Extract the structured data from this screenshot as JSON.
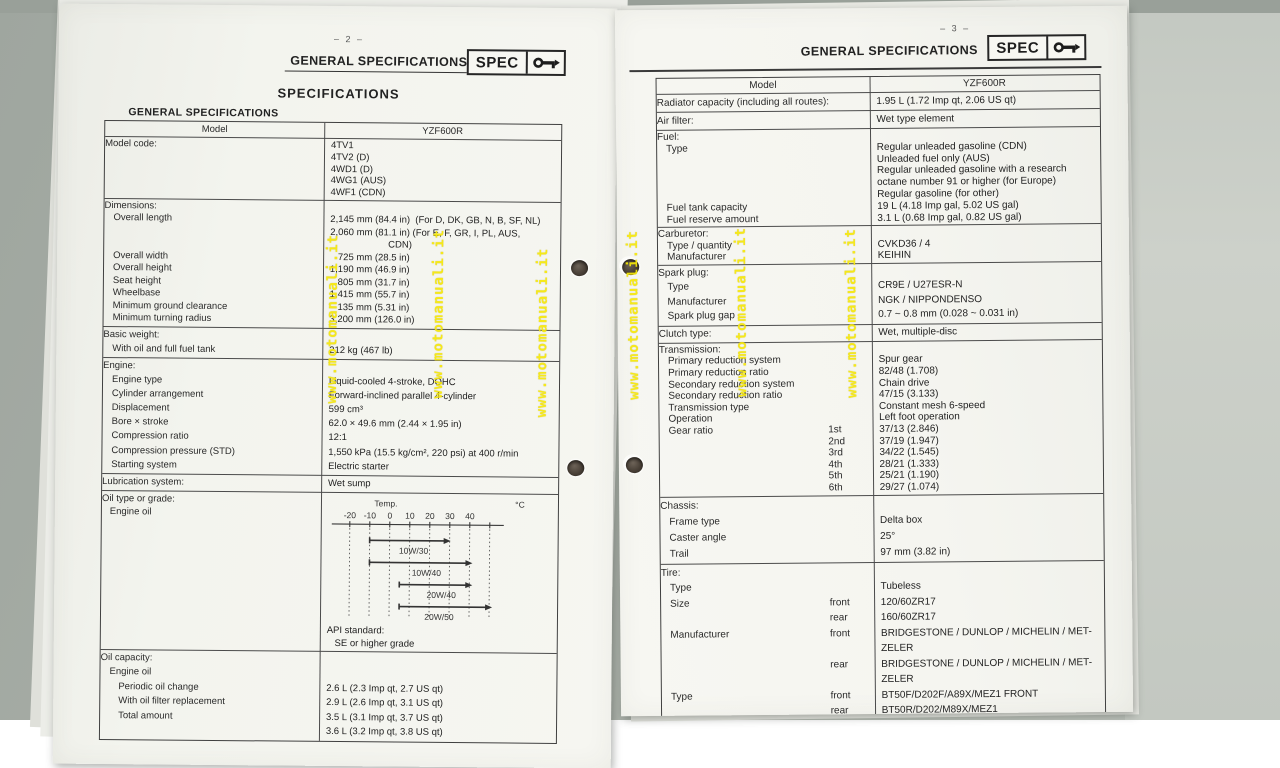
{
  "photo": {
    "watermark_text": "www.motomanuali.it",
    "watermark_color": "#f6e80a",
    "desk_color": "#aab0a9",
    "paper_color": "#f5f5f0"
  },
  "pages": {
    "left": {
      "page_number": "– 2 –",
      "header_title": "GENERAL SPECIFICATIONS",
      "spec_label": "SPEC",
      "title": "SPECIFICATIONS",
      "section_title": "GENERAL SPECIFICATIONS"
    },
    "right": {
      "page_number": "– 3 –",
      "header_title": "GENERAL SPECIFICATIONS",
      "spec_label": "SPEC"
    }
  },
  "oil_chart": {
    "temp_label": "Temp.",
    "unit_label": "°C",
    "ticks": [
      "-20",
      "-10",
      "0",
      "10",
      "20",
      "30",
      "40"
    ],
    "bars": [
      "10W/30",
      "10W/40",
      "20W/40",
      "20W/50"
    ],
    "api_lines": [
      "API standard:",
      "   SE or higher grade"
    ]
  },
  "chart_data": {
    "type": "bar",
    "title": "Engine oil viscosity vs temperature",
    "xlabel": "Temp. °C",
    "x_ticks": [
      -20,
      -10,
      0,
      10,
      20,
      30,
      40
    ],
    "categories": [
      "10W/30",
      "10W/40",
      "20W/40",
      "20W/50"
    ],
    "ranges_celsius": [
      [
        -10,
        30
      ],
      [
        -10,
        40
      ],
      [
        5,
        40
      ],
      [
        5,
        50
      ]
    ],
    "note": "horizontal temperature-range arrows; API standard: SE or higher grade"
  },
  "tables": {
    "left": {
      "header": [
        "Model",
        "YZF600R"
      ],
      "sections": [
        {
          "lh": 11.8,
          "rows": [
            {
              "label": "Model code:",
              "value_lines": [
                "4TV1",
                "4TV2 (D)",
                "4WD1 (D)",
                "4WG1 (AUS)",
                "4WF1 (CDN)"
              ]
            }
          ]
        },
        {
          "lh": 12.5,
          "rows": [
            {
              "label": "Dimensions:"
            },
            {
              "label": "Overall length",
              "indent": 1,
              "value_lines": [
                "2,145 mm (84.4 in)  (For D, DK, GB, N, B, SF, NL)",
                "2,060 mm (81.1 in) (For E, F, GR, I, PL, AUS,",
                "                      CDN)"
              ]
            },
            {
              "label": "Overall width",
              "indent": 1,
              "value_lines": [
                "   725 mm (28.5 in)"
              ]
            },
            {
              "label": "Overall height",
              "indent": 1,
              "value_lines": [
                "1,190 mm (46.9 in)"
              ]
            },
            {
              "label": "Seat height",
              "indent": 1,
              "value_lines": [
                "   805 mm (31.7 in)"
              ]
            },
            {
              "label": "Wheelbase",
              "indent": 1,
              "value_lines": [
                "1,415 mm (55.7 in)"
              ]
            },
            {
              "label": "Minimum ground clearance",
              "indent": 1,
              "value_lines": [
                "   135 mm (5.31 in)"
              ]
            },
            {
              "label": "Minimum turning radius",
              "indent": 1,
              "value_lines": [
                "3,200 mm (126.0 in)"
              ]
            }
          ]
        },
        {
          "lh": 14,
          "rows": [
            {
              "label": "Basic weight:"
            },
            {
              "label": "With oil and full fuel tank",
              "indent": 1,
              "value_lines": [
                "212 kg (467 lb)"
              ]
            }
          ]
        },
        {
          "lh": 14.1,
          "rows": [
            {
              "label": "Engine:"
            },
            {
              "label": "Engine type",
              "indent": 1,
              "value_lines": [
                "Liquid-cooled 4-stroke, DOHC"
              ]
            },
            {
              "label": "Cylinder arrangement",
              "indent": 1,
              "value_lines": [
                "Forward-inclined parallel 4-cylinder"
              ]
            },
            {
              "label": "Displacement",
              "indent": 1,
              "value_lines": [
                "599 cm³"
              ]
            },
            {
              "label": "Bore × stroke",
              "indent": 1,
              "value_lines": [
                "62.0 × 49.6 mm (2.44 × 1.95 in)"
              ]
            },
            {
              "label": "Compression ratio",
              "indent": 1,
              "value_lines": [
                "12:1"
              ]
            },
            {
              "label": "Compression pressure (STD)",
              "indent": 1,
              "value_lines": [
                "1,550 kPa (15.5 kg/cm², 220 psi) at 400 r/min"
              ]
            },
            {
              "label": "Starting system",
              "indent": 1,
              "value_lines": [
                "Electric starter"
              ]
            }
          ]
        },
        {
          "lh": 14,
          "rows": [
            {
              "label": "Lubrication system:",
              "value_lines": [
                "Wet sump"
              ]
            }
          ]
        },
        {
          "lh": 13,
          "rows": [
            {
              "label_lines": [
                "Oil type or grade:",
                "   Engine oil"
              ],
              "chart": true,
              "value_lines": [
                "API standard:",
                "   SE or higher grade"
              ]
            }
          ]
        },
        {
          "lh": 14.5,
          "rows": [
            {
              "label": "Oil capacity:"
            },
            {
              "label": "Engine oil",
              "indent": 1
            },
            {
              "label": "Periodic oil change",
              "indent": 2,
              "value_lines": [
                "2.6 L (2.3 Imp qt, 2.7 US qt)"
              ]
            },
            {
              "label": "With oil filter replacement",
              "indent": 2,
              "value_lines": [
                "2.9 L (2.6 Imp qt, 3.1 US qt)"
              ]
            },
            {
              "label": "Total amount",
              "indent": 2,
              "value_lines": [
                "3.5 L (3.1 Imp qt, 3.7 US qt)"
              ]
            },
            {
              "label": "",
              "value_lines": [
                "3.6 L (3.2 Imp qt, 3.8 US qt)"
              ]
            }
          ]
        }
      ]
    },
    "right": {
      "header": [
        "Model",
        "YZF600R"
      ],
      "sections": [
        {
          "lh": 15,
          "rows": [
            {
              "label": "Radiator capacity (including all routes):",
              "value_lines": [
                "1.95 L (1.72 Imp qt, 2.06 US qt)"
              ]
            }
          ]
        },
        {
          "lh": 15,
          "rows": [
            {
              "label": "Air filter:",
              "value_lines": [
                "Wet type element"
              ]
            }
          ]
        },
        {
          "lh": 11.8,
          "rows": [
            {
              "label": "Fuel:"
            },
            {
              "label": "Type",
              "indent": 1,
              "value_lines": [
                "Regular unleaded gasoline (CDN)",
                "Unleaded fuel only (AUS)",
                "Regular unleaded gasoline with a research",
                "octane number 91 or higher (for Europe)",
                "Regular gasoline (for other)"
              ]
            },
            {
              "label": "Fuel tank capacity",
              "indent": 1,
              "value_lines": [
                "19 L (4.18 Imp gal, 5.02 US gal)"
              ]
            },
            {
              "label": "Fuel reserve amount",
              "indent": 1,
              "value_lines": [
                "3.1 L (0.68 Imp gal, 0.82 US gal)"
              ]
            }
          ]
        },
        {
          "lh": 11.5,
          "rows": [
            {
              "label": "Carburetor:"
            },
            {
              "label": "Type / quantity",
              "indent": 1,
              "value_lines": [
                "CVKD36 / 4"
              ]
            },
            {
              "label": "Manufacturer",
              "indent": 1,
              "value_lines": [
                "KEIHIN"
              ]
            }
          ]
        },
        {
          "lh": 14.5,
          "rows": [
            {
              "label": "Spark plug:"
            },
            {
              "label": "Type",
              "indent": 1,
              "value_lines": [
                "CR9E / U27ESR-N"
              ]
            },
            {
              "label": "Manufacturer",
              "indent": 1,
              "value_lines": [
                "NGK / NIPPONDENSO"
              ]
            },
            {
              "label": "Spark plug gap",
              "indent": 1,
              "value_lines": [
                "0.7 ~ 0.8 mm (0.028 ~ 0.031 in)"
              ]
            }
          ]
        },
        {
          "lh": 14,
          "rows": [
            {
              "label": "Clutch type:",
              "value_lines": [
                "Wet, multiple-disc"
              ]
            }
          ]
        },
        {
          "lh": 11.6,
          "rows": [
            {
              "label": "Transmission:"
            },
            {
              "label": "Primary reduction system",
              "indent": 1,
              "value_lines": [
                "Spur gear"
              ]
            },
            {
              "label": "Primary reduction ratio",
              "indent": 1,
              "value_lines": [
                "82/48 (1.708)"
              ]
            },
            {
              "label": "Secondary reduction system",
              "indent": 1,
              "value_lines": [
                "Chain drive"
              ]
            },
            {
              "label": "Secondary reduction ratio",
              "indent": 1,
              "value_lines": [
                "47/15 (3.133)"
              ]
            },
            {
              "label": "Transmission type",
              "indent": 1,
              "value_lines": [
                "Constant mesh 6-speed"
              ]
            },
            {
              "label": "Operation",
              "indent": 1,
              "value_lines": [
                "Left foot operation"
              ]
            },
            {
              "label": "Gear ratio",
              "indent": 1,
              "mid": "1st",
              "value_lines": [
                "37/13 (2.846)"
              ]
            },
            {
              "mid": "2nd",
              "value_lines": [
                "37/19 (1.947)"
              ]
            },
            {
              "mid": "3rd",
              "value_lines": [
                "34/22 (1.545)"
              ]
            },
            {
              "mid": "4th",
              "value_lines": [
                "28/21 (1.333)"
              ]
            },
            {
              "mid": "5th",
              "value_lines": [
                "25/21 (1.190)"
              ]
            },
            {
              "mid": "6th",
              "value_lines": [
                "29/27 (1.074)"
              ]
            }
          ]
        },
        {
          "lh": 16,
          "rows": [
            {
              "label": "Chassis:"
            },
            {
              "label": "Frame type",
              "indent": 1,
              "value_lines": [
                "Delta box"
              ]
            },
            {
              "label": "Caster angle",
              "indent": 1,
              "value_lines": [
                "25°"
              ]
            },
            {
              "label": "Trail",
              "indent": 1,
              "value_lines": [
                "97 mm (3.82 in)"
              ]
            }
          ]
        },
        {
          "lh": 15.5,
          "rows": [
            {
              "label": "Tire:"
            },
            {
              "label": "Type",
              "indent": 1,
              "value_lines": [
                "Tubeless"
              ]
            },
            {
              "label": "Size",
              "indent": 1,
              "mid": "front",
              "value_lines": [
                "120/60ZR17"
              ]
            },
            {
              "mid": "rear",
              "value_lines": [
                "160/60ZR17"
              ]
            },
            {
              "label": "Manufacturer",
              "indent": 1,
              "mid": "front",
              "value_lines": [
                "BRIDGESTONE / DUNLOP / MICHELIN / MET-",
                "ZELER"
              ]
            },
            {
              "mid": "rear",
              "value_lines": [
                "BRIDGESTONE / DUNLOP / MICHELIN / MET-",
                "ZELER"
              ]
            },
            {
              "label": "Type",
              "indent": 1,
              "mid": "front",
              "value_lines": [
                "BT50F/D202F/A89X/MEZ1 FRONT"
              ]
            },
            {
              "mid": "rear",
              "value_lines": [
                "BT50R/D202/M89X/MEZ1"
              ]
            }
          ]
        }
      ]
    }
  }
}
